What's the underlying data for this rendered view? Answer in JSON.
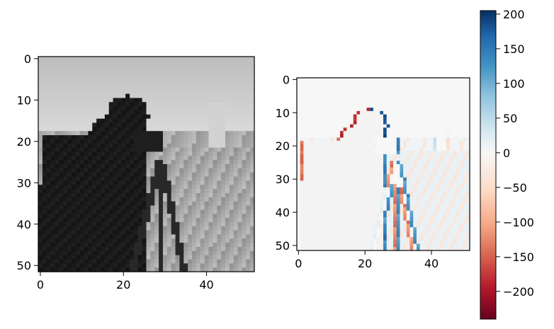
{
  "chart_data": [
    {
      "type": "heatmap",
      "panel": "left",
      "colormap": "gray",
      "description_values": "grayscale cameraman image (52x52)",
      "xlim": [
        -0.5,
        51.5
      ],
      "ylim": [
        51.5,
        -0.5
      ],
      "xticks": [
        "0",
        "20",
        "40"
      ],
      "yticks": [
        "0",
        "10",
        "20",
        "30",
        "40",
        "50"
      ],
      "xtick_values": [
        0,
        20,
        40
      ],
      "ytick_values": [
        0,
        10,
        20,
        30,
        40,
        50
      ],
      "title": "",
      "xlabel": "",
      "ylabel": ""
    },
    {
      "type": "heatmap",
      "panel": "right",
      "colormap": "RdBu",
      "description_values": "horizontal gradient (edge response) of the image",
      "xlim": [
        -0.5,
        51.5
      ],
      "ylim": [
        51.5,
        -0.5
      ],
      "xticks": [
        "0",
        "20",
        "40"
      ],
      "yticks": [
        "0",
        "10",
        "20",
        "30",
        "40",
        "50"
      ],
      "xtick_values": [
        0,
        20,
        40
      ],
      "ytick_values": [
        0,
        10,
        20,
        30,
        40,
        50
      ],
      "title": "",
      "xlabel": "",
      "ylabel": ""
    }
  ],
  "colorbar": {
    "vmin": -240,
    "vmax": 205,
    "tick_values": [
      200,
      150,
      100,
      50,
      0,
      -50,
      -100,
      -150,
      -200
    ],
    "ticks": [
      "200",
      "150",
      "100",
      "50",
      "0",
      "−50",
      "−100",
      "−150",
      "−200"
    ]
  }
}
